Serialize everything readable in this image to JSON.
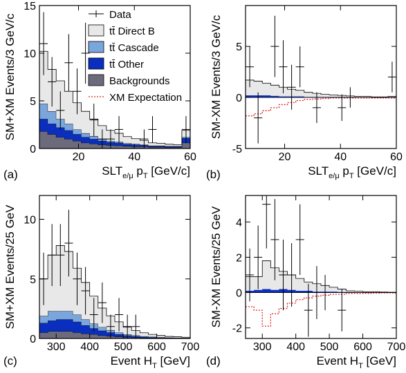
{
  "legend": {
    "entries": [
      {
        "key": "data",
        "label": "Data",
        "kind": "errbar",
        "color": "#000000"
      },
      {
        "key": "direct_b",
        "label": "tt̄ Direct B",
        "kind": "box",
        "color": "#e8e8e8"
      },
      {
        "key": "cascade",
        "label": "tt̄ Cascade",
        "kind": "box",
        "color": "#7aa6dc"
      },
      {
        "key": "other",
        "label": "tt̄ Other",
        "kind": "box",
        "color": "#0a2fbf"
      },
      {
        "key": "backgrounds",
        "label": "Backgrounds",
        "kind": "box",
        "color": "#6b6b7b"
      },
      {
        "key": "xm",
        "label": "XM Expectation",
        "kind": "dotted",
        "color": "#e02020"
      }
    ]
  },
  "chart_data": [
    {
      "panel_label": "(a)",
      "type": "stacked_histogram",
      "xlabel": {
        "main": "SLT",
        "sub": "e/μ",
        "rest": " p",
        "sub2": "T",
        "tail": " [GeV/c]"
      },
      "ylabel": "SM+XM Events/3 GeV/c",
      "xlim": [
        6,
        60
      ],
      "ylim": [
        0,
        15
      ],
      "xticks": [
        20,
        40,
        60
      ],
      "yticks": [
        0,
        5,
        10,
        15
      ],
      "bin_width": 3,
      "bins": [
        6,
        9,
        12,
        15,
        18,
        21,
        24,
        27,
        30,
        33,
        36,
        39,
        42,
        45,
        48,
        51,
        54,
        57
      ],
      "stacks": {
        "backgrounds": [
          1.8,
          1.5,
          1.2,
          1.0,
          0.8,
          0.6,
          0.5,
          0.4,
          0.35,
          0.3,
          0.25,
          0.2,
          0.2,
          0.15,
          0.15,
          0.1,
          0.1,
          0.6
        ],
        "other": [
          1.3,
          1.1,
          1.0,
          0.9,
          0.7,
          0.6,
          0.5,
          0.4,
          0.3,
          0.3,
          0.2,
          0.2,
          0.15,
          0.1,
          0.1,
          0.1,
          0.1,
          0.5
        ],
        "cascade": [
          1.6,
          1.3,
          0.9,
          0.7,
          0.5,
          0.4,
          0.3,
          0.2,
          0.15,
          0.1,
          0.1,
          0.08,
          0.05,
          0.05,
          0.05,
          0.05,
          0.05,
          0.1
        ],
        "direct_b": [
          5.5,
          4.4,
          4.0,
          3.4,
          2.8,
          2.3,
          1.8,
          1.4,
          1.1,
          0.9,
          0.7,
          0.55,
          0.45,
          0.3,
          0.25,
          0.2,
          0.15,
          0.7
        ]
      },
      "data_points": [
        {
          "x": 7.5,
          "y": 11,
          "err": 3.3
        },
        {
          "x": 10.5,
          "y": 7,
          "err": 2.6
        },
        {
          "x": 13.5,
          "y": 4,
          "err": 2.0
        },
        {
          "x": 16.5,
          "y": 9,
          "err": 3.0
        },
        {
          "x": 19.5,
          "y": 6,
          "err": 2.4
        },
        {
          "x": 22.5,
          "y": 10,
          "err": 3.2
        },
        {
          "x": 25.5,
          "y": 3,
          "err": 1.7
        },
        {
          "x": 28.5,
          "y": 1,
          "err": 1.0
        },
        {
          "x": 31.5,
          "y": 1,
          "err": 1.0
        },
        {
          "x": 34.5,
          "y": 2,
          "err": 1.4
        },
        {
          "x": 43.5,
          "y": 1,
          "err": 1.0
        },
        {
          "x": 46.5,
          "y": 2,
          "err": 1.4
        },
        {
          "x": 58.5,
          "y": 2,
          "err": 1.4
        }
      ],
      "show_legend": true
    },
    {
      "panel_label": "(b)",
      "type": "stacked_histogram",
      "xlabel": {
        "main": "SLT",
        "sub": "e/μ",
        "rest": " p",
        "sub2": "T",
        "tail": " [GeV/c]"
      },
      "ylabel": "SM-XM Events/3 GeV/c",
      "xlim": [
        6,
        60
      ],
      "ylim": [
        -5,
        9
      ],
      "xticks": [
        20,
        40,
        60
      ],
      "yticks": [
        -5,
        0,
        5
      ],
      "zero_line": true,
      "bin_width": 3,
      "bins": [
        6,
        9,
        12,
        15,
        18,
        21,
        24,
        27,
        30,
        33,
        36,
        39,
        42,
        45,
        48,
        51,
        54,
        57
      ],
      "positive_stack": [
        1.7,
        1.6,
        1.4,
        1.2,
        1.0,
        0.8,
        0.7,
        0.5,
        0.4,
        0.3,
        0.25,
        0.2,
        0.15,
        0.1,
        0.1,
        0.05,
        0.05,
        0.1
      ],
      "other_band": [
        0.2,
        0.2,
        0.2,
        0.15,
        0.1,
        0.1,
        0.1,
        0.05,
        0.05,
        0.05,
        0.05,
        0.05,
        0.02,
        0.02,
        0.02,
        0.02,
        0.02,
        0.05
      ],
      "xm_expectation": [
        -1.8,
        -1.6,
        -1.3,
        -1.0,
        -0.7,
        -0.5,
        -0.3,
        -0.2,
        -0.15,
        -0.1,
        -0.05,
        -0.05,
        -0.05,
        -0.05,
        -0.05,
        -0.05,
        -0.05,
        -0.05
      ],
      "data_points": [
        {
          "x": 7.5,
          "y": 3,
          "err": 2.0
        },
        {
          "x": 10.5,
          "y": -2,
          "err": 2.5
        },
        {
          "x": 16.5,
          "y": 5,
          "err": 3.0
        },
        {
          "x": 19.5,
          "y": 3,
          "err": 2.6
        },
        {
          "x": 22.5,
          "y": 1,
          "err": 2.2
        },
        {
          "x": 25.5,
          "y": 3,
          "err": 2.0
        },
        {
          "x": 31.5,
          "y": -1,
          "err": 1.5
        },
        {
          "x": 40.5,
          "y": -1,
          "err": 1.3
        },
        {
          "x": 43.5,
          "y": 0,
          "err": 1.0
        },
        {
          "x": 58.5,
          "y": 2,
          "err": 1.5
        }
      ],
      "show_legend": false
    },
    {
      "panel_label": "(c)",
      "type": "stacked_histogram",
      "xlabel": {
        "main": "Event H",
        "sub2": "T",
        "tail": " [GeV]"
      },
      "ylabel": "SM+XM Events/25 GeV",
      "xlim": [
        250,
        700
      ],
      "ylim": [
        0,
        12
      ],
      "xticks": [
        300,
        400,
        500,
        600,
        700
      ],
      "yticks": [
        0,
        5,
        10
      ],
      "bin_width": 25,
      "bins": [
        250,
        275,
        300,
        325,
        350,
        375,
        400,
        425,
        450,
        475,
        500,
        525,
        550,
        575,
        600,
        625,
        650,
        675
      ],
      "stacks": {
        "backgrounds": [
          0.5,
          0.6,
          0.6,
          0.6,
          0.5,
          0.4,
          0.35,
          0.25,
          0.2,
          0.15,
          0.1,
          0.08,
          0.05,
          0.05,
          0.03,
          0.02,
          0.02,
          0.02
        ],
        "other": [
          0.8,
          0.9,
          1.0,
          1.0,
          0.9,
          0.7,
          0.5,
          0.4,
          0.3,
          0.2,
          0.15,
          0.1,
          0.08,
          0.05,
          0.04,
          0.03,
          0.02,
          0.02
        ],
        "cascade": [
          0.6,
          0.8,
          0.7,
          0.7,
          0.6,
          0.5,
          0.4,
          0.3,
          0.2,
          0.15,
          0.1,
          0.08,
          0.05,
          0.04,
          0.03,
          0.02,
          0.02,
          0.01
        ],
        "direct_b": [
          3.1,
          4.7,
          5.5,
          5.0,
          3.9,
          3.1,
          2.3,
          1.6,
          1.2,
          0.9,
          0.6,
          0.4,
          0.3,
          0.2,
          0.15,
          0.1,
          0.08,
          0.05
        ]
      },
      "data_points": [
        {
          "x": 262.5,
          "y": 5,
          "err": 2.2
        },
        {
          "x": 287.5,
          "y": 7,
          "err": 2.6
        },
        {
          "x": 312.5,
          "y": 7,
          "err": 2.6
        },
        {
          "x": 337.5,
          "y": 8,
          "err": 2.8
        },
        {
          "x": 362.5,
          "y": 5,
          "err": 2.2
        },
        {
          "x": 387.5,
          "y": 4,
          "err": 2.0
        },
        {
          "x": 412.5,
          "y": 2,
          "err": 1.4
        },
        {
          "x": 437.5,
          "y": 3,
          "err": 1.7
        },
        {
          "x": 462.5,
          "y": 1,
          "err": 1.0
        },
        {
          "x": 487.5,
          "y": 2,
          "err": 1.4
        },
        {
          "x": 512.5,
          "y": 1,
          "err": 1.0
        },
        {
          "x": 537.5,
          "y": 1,
          "err": 1.0
        }
      ],
      "show_legend": false
    },
    {
      "panel_label": "(d)",
      "type": "stacked_histogram",
      "xlabel": {
        "main": "Event H",
        "sub2": "T",
        "tail": " [GeV]"
      },
      "ylabel": "SM-XM Events/25 GeV",
      "xlim": [
        250,
        700
      ],
      "ylim": [
        -2.6,
        5.5
      ],
      "xticks": [
        300,
        400,
        500,
        600,
        700
      ],
      "yticks": [
        -2,
        0,
        2,
        4
      ],
      "zero_line": true,
      "bin_width": 25,
      "bins": [
        250,
        275,
        300,
        325,
        350,
        375,
        400,
        425,
        450,
        475,
        500,
        525,
        550,
        575,
        600,
        625,
        650,
        675
      ],
      "positive_stack": [
        0.9,
        0.9,
        1.8,
        1.4,
        1.2,
        1.0,
        0.8,
        0.6,
        0.5,
        0.4,
        0.3,
        0.2,
        0.1,
        0.08,
        0.05,
        0.05,
        0.03,
        0.02
      ],
      "other_band": [
        0.1,
        0.15,
        0.2,
        0.15,
        0.2,
        0.15,
        0.1,
        0.1,
        0.05,
        0.05,
        0.05,
        0.03,
        0.03,
        0.02,
        0.02,
        0.01,
        0.01,
        0.01
      ],
      "xm_expectation": [
        -0.8,
        -1.0,
        -1.9,
        -1.2,
        -0.9,
        -0.6,
        -0.4,
        -0.3,
        -0.2,
        -0.15,
        -0.1,
        -0.1,
        -0.05,
        -0.05,
        -0.05,
        -0.03,
        -0.02,
        -0.02
      ],
      "data_points": [
        {
          "x": 262.5,
          "y": 1,
          "err": 1.5
        },
        {
          "x": 287.5,
          "y": 2,
          "err": 1.8
        },
        {
          "x": 312.5,
          "y": 5,
          "err": 2.5
        },
        {
          "x": 337.5,
          "y": 3,
          "err": 2.3
        },
        {
          "x": 362.5,
          "y": 1,
          "err": 2.0
        },
        {
          "x": 387.5,
          "y": 1,
          "err": 1.8
        },
        {
          "x": 412.5,
          "y": 3,
          "err": 2.0
        },
        {
          "x": 437.5,
          "y": -1,
          "err": 1.5
        },
        {
          "x": 462.5,
          "y": 0,
          "err": 1.5
        },
        {
          "x": 487.5,
          "y": 0,
          "err": 1.0
        },
        {
          "x": 537.5,
          "y": -1,
          "err": 1.2
        }
      ],
      "show_legend": false
    }
  ]
}
